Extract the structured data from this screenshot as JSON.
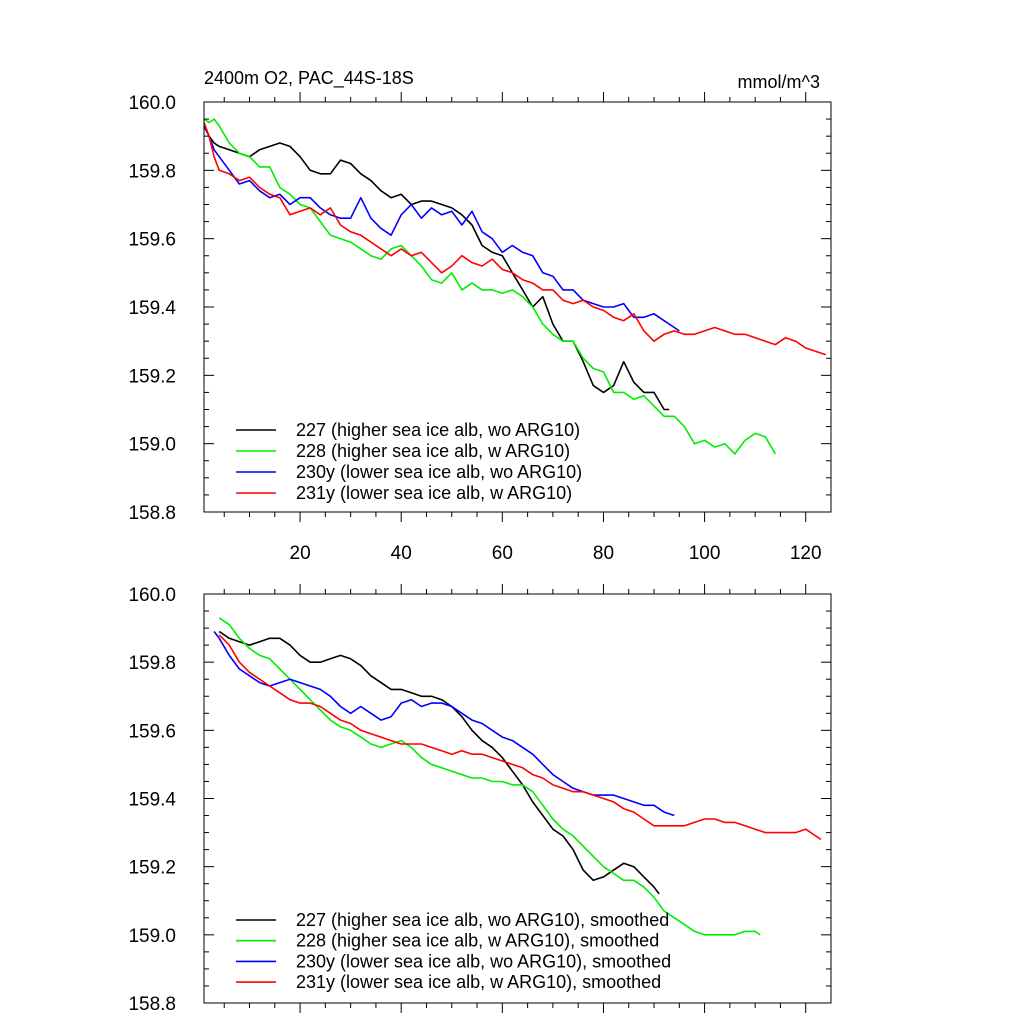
{
  "chart_data": [
    {
      "type": "line",
      "title": "2400m O2, PAC_44S-18S",
      "units": "mmol/m^3",
      "xlabel": "",
      "ylabel": "",
      "xlim": [
        1,
        125
      ],
      "ylim": [
        158.8,
        160.0
      ],
      "xticks": [
        20,
        40,
        60,
        80,
        100,
        120
      ],
      "xtick_labels": [
        "20",
        "40",
        "60",
        "80",
        "100",
        "120"
      ],
      "yticks": [
        158.8,
        159.0,
        159.2,
        159.4,
        159.6,
        159.8,
        160.0
      ],
      "ytick_labels": [
        "158.8",
        "159.0",
        "159.2",
        "159.4",
        "159.6",
        "159.8",
        "160.0"
      ],
      "legend_position": "bottom-left",
      "series": [
        {
          "name": "227 (higher sea ice alb, wo ARG10)",
          "color": "#000000",
          "x": [
            1,
            2,
            3,
            4,
            6,
            8,
            10,
            12,
            14,
            16,
            18,
            20,
            22,
            24,
            26,
            28,
            30,
            32,
            34,
            36,
            38,
            40,
            42,
            44,
            46,
            48,
            50,
            52,
            54,
            56,
            58,
            60,
            62,
            64,
            66,
            68,
            70,
            72,
            74,
            76,
            78,
            80,
            82,
            84,
            86,
            88,
            90,
            92,
            93
          ],
          "y": [
            159.93,
            159.9,
            159.88,
            159.87,
            159.86,
            159.85,
            159.84,
            159.86,
            159.87,
            159.88,
            159.87,
            159.84,
            159.8,
            159.79,
            159.79,
            159.83,
            159.82,
            159.79,
            159.77,
            159.74,
            159.72,
            159.73,
            159.7,
            159.71,
            159.71,
            159.7,
            159.69,
            159.67,
            159.64,
            159.58,
            159.56,
            159.55,
            159.5,
            159.45,
            159.4,
            159.43,
            159.35,
            159.3,
            159.3,
            159.24,
            159.17,
            159.15,
            159.17,
            159.24,
            159.18,
            159.15,
            159.15,
            159.1,
            159.1
          ]
        },
        {
          "name": "228 (higher sea ice alb, w ARG10)",
          "color": "#00ee00",
          "x": [
            1,
            2,
            3,
            4,
            6,
            8,
            10,
            12,
            14,
            16,
            18,
            20,
            22,
            24,
            26,
            28,
            30,
            32,
            34,
            36,
            38,
            40,
            42,
            44,
            46,
            48,
            50,
            52,
            54,
            56,
            58,
            60,
            62,
            64,
            66,
            68,
            70,
            72,
            74,
            76,
            78,
            80,
            82,
            84,
            86,
            88,
            90,
            92,
            94,
            96,
            98,
            100,
            102,
            104,
            106,
            108,
            110,
            112,
            114
          ],
          "y": [
            159.95,
            159.94,
            159.95,
            159.93,
            159.88,
            159.85,
            159.84,
            159.81,
            159.81,
            159.75,
            159.73,
            159.7,
            159.69,
            159.65,
            159.61,
            159.6,
            159.59,
            159.57,
            159.55,
            159.54,
            159.57,
            159.58,
            159.55,
            159.52,
            159.48,
            159.47,
            159.5,
            159.45,
            159.47,
            159.45,
            159.45,
            159.44,
            159.45,
            159.43,
            159.4,
            159.35,
            159.32,
            159.3,
            159.3,
            159.25,
            159.22,
            159.21,
            159.15,
            159.15,
            159.13,
            159.14,
            159.11,
            159.08,
            159.08,
            159.05,
            159.0,
            159.01,
            158.99,
            159.0,
            158.97,
            159.01,
            159.03,
            159.02,
            158.97
          ]
        },
        {
          "name": "230y (lower sea ice alb, wo ARG10)",
          "color": "#0000ff",
          "x": [
            1,
            2,
            3,
            4,
            6,
            8,
            10,
            12,
            14,
            16,
            18,
            20,
            22,
            24,
            26,
            28,
            30,
            32,
            34,
            36,
            38,
            40,
            42,
            44,
            46,
            48,
            50,
            52,
            54,
            56,
            58,
            60,
            62,
            64,
            66,
            68,
            70,
            72,
            74,
            76,
            78,
            80,
            82,
            84,
            86,
            88,
            90,
            92,
            94,
            95
          ],
          "y": [
            159.93,
            159.9,
            159.86,
            159.84,
            159.8,
            159.76,
            159.77,
            159.74,
            159.72,
            159.73,
            159.7,
            159.72,
            159.72,
            159.69,
            159.67,
            159.66,
            159.66,
            159.72,
            159.66,
            159.63,
            159.61,
            159.67,
            159.7,
            159.66,
            159.69,
            159.67,
            159.68,
            159.64,
            159.68,
            159.62,
            159.6,
            159.56,
            159.58,
            159.56,
            159.55,
            159.5,
            159.49,
            159.45,
            159.45,
            159.42,
            159.41,
            159.4,
            159.4,
            159.41,
            159.37,
            159.37,
            159.38,
            159.36,
            159.34,
            159.33
          ]
        },
        {
          "name": "231y (lower sea ice alb, w ARG10)",
          "color": "#ff0000",
          "x": [
            1,
            2,
            3,
            4,
            6,
            8,
            10,
            12,
            14,
            16,
            18,
            20,
            22,
            24,
            26,
            28,
            30,
            32,
            34,
            36,
            38,
            40,
            42,
            44,
            46,
            48,
            50,
            52,
            54,
            56,
            58,
            60,
            62,
            64,
            66,
            68,
            70,
            72,
            74,
            76,
            78,
            80,
            82,
            84,
            86,
            88,
            90,
            92,
            94,
            96,
            98,
            100,
            102,
            104,
            106,
            108,
            110,
            112,
            114,
            116,
            118,
            120,
            122,
            124
          ],
          "y": [
            159.94,
            159.9,
            159.84,
            159.8,
            159.79,
            159.77,
            159.78,
            159.75,
            159.73,
            159.72,
            159.67,
            159.68,
            159.69,
            159.67,
            159.69,
            159.64,
            159.62,
            159.61,
            159.59,
            159.57,
            159.55,
            159.57,
            159.55,
            159.56,
            159.53,
            159.5,
            159.52,
            159.55,
            159.53,
            159.52,
            159.54,
            159.51,
            159.5,
            159.48,
            159.47,
            159.45,
            159.45,
            159.42,
            159.41,
            159.42,
            159.4,
            159.39,
            159.37,
            159.36,
            159.38,
            159.33,
            159.3,
            159.32,
            159.33,
            159.32,
            159.32,
            159.33,
            159.34,
            159.33,
            159.32,
            159.32,
            159.31,
            159.3,
            159.29,
            159.31,
            159.3,
            159.28,
            159.27,
            159.26
          ]
        }
      ]
    },
    {
      "type": "line",
      "title": "",
      "xlabel": "",
      "ylabel": "",
      "xlim": [
        1,
        125
      ],
      "ylim": [
        158.8,
        160.0
      ],
      "xticks": [
        20,
        40,
        60,
        80,
        100,
        120
      ],
      "yticks": [
        158.8,
        159.0,
        159.2,
        159.4,
        159.6,
        159.8,
        160.0
      ],
      "ytick_labels": [
        "158.8",
        "159.0",
        "159.2",
        "159.4",
        "159.6",
        "159.8",
        "160.0"
      ],
      "legend_position": "bottom-left",
      "series": [
        {
          "name": "227 (higher sea ice alb, wo ARG10), smoothed",
          "color": "#000000",
          "x": [
            4,
            6,
            8,
            10,
            12,
            14,
            16,
            18,
            20,
            22,
            24,
            26,
            28,
            30,
            32,
            34,
            36,
            38,
            40,
            42,
            44,
            46,
            48,
            50,
            52,
            54,
            56,
            58,
            60,
            62,
            64,
            66,
            68,
            70,
            72,
            74,
            76,
            78,
            80,
            82,
            84,
            86,
            88,
            90,
            91
          ],
          "y": [
            159.89,
            159.87,
            159.86,
            159.85,
            159.86,
            159.87,
            159.87,
            159.85,
            159.82,
            159.8,
            159.8,
            159.81,
            159.82,
            159.81,
            159.79,
            159.76,
            159.74,
            159.72,
            159.72,
            159.71,
            159.7,
            159.7,
            159.69,
            159.67,
            159.64,
            159.6,
            159.57,
            159.55,
            159.52,
            159.48,
            159.44,
            159.39,
            159.35,
            159.31,
            159.29,
            159.25,
            159.19,
            159.16,
            159.17,
            159.19,
            159.21,
            159.2,
            159.17,
            159.14,
            159.12
          ]
        },
        {
          "name": "228 (higher sea ice alb, w ARG10), smoothed",
          "color": "#00ee00",
          "x": [
            4,
            6,
            8,
            10,
            12,
            14,
            16,
            18,
            20,
            22,
            24,
            26,
            28,
            30,
            32,
            34,
            36,
            38,
            40,
            42,
            44,
            46,
            48,
            50,
            52,
            54,
            56,
            58,
            60,
            62,
            64,
            66,
            68,
            70,
            72,
            74,
            76,
            78,
            80,
            82,
            84,
            86,
            88,
            90,
            92,
            94,
            96,
            98,
            100,
            102,
            104,
            106,
            108,
            110,
            111
          ],
          "y": [
            159.93,
            159.91,
            159.87,
            159.84,
            159.82,
            159.81,
            159.78,
            159.75,
            159.72,
            159.69,
            159.66,
            159.63,
            159.61,
            159.6,
            159.58,
            159.56,
            159.55,
            159.56,
            159.57,
            159.55,
            159.52,
            159.5,
            159.49,
            159.48,
            159.47,
            159.46,
            159.46,
            159.45,
            159.45,
            159.44,
            159.44,
            159.42,
            159.38,
            159.34,
            159.31,
            159.29,
            159.26,
            159.23,
            159.2,
            159.18,
            159.16,
            159.16,
            159.14,
            159.11,
            159.07,
            159.05,
            159.03,
            159.01,
            159.0,
            159.0,
            159.0,
            159.0,
            159.01,
            159.01,
            159.0
          ]
        },
        {
          "name": "230y (lower sea ice alb, wo ARG10), smoothed",
          "color": "#0000ff",
          "x": [
            3,
            4,
            6,
            8,
            10,
            12,
            14,
            16,
            18,
            20,
            22,
            24,
            26,
            28,
            30,
            32,
            34,
            36,
            38,
            40,
            42,
            44,
            46,
            48,
            50,
            52,
            54,
            56,
            58,
            60,
            62,
            64,
            66,
            68,
            70,
            72,
            74,
            76,
            78,
            80,
            82,
            84,
            86,
            88,
            90,
            92,
            94
          ],
          "y": [
            159.89,
            159.87,
            159.82,
            159.78,
            159.76,
            159.74,
            159.73,
            159.74,
            159.75,
            159.74,
            159.73,
            159.72,
            159.7,
            159.67,
            159.65,
            159.67,
            159.65,
            159.63,
            159.64,
            159.68,
            159.69,
            159.67,
            159.68,
            159.68,
            159.67,
            159.65,
            159.63,
            159.62,
            159.6,
            159.58,
            159.57,
            159.55,
            159.53,
            159.5,
            159.47,
            159.45,
            159.43,
            159.42,
            159.41,
            159.41,
            159.41,
            159.4,
            159.39,
            159.38,
            159.38,
            159.36,
            159.35
          ]
        },
        {
          "name": "231y (lower sea ice alb, w ARG10), smoothed",
          "color": "#ff0000",
          "x": [
            4,
            6,
            8,
            10,
            12,
            14,
            16,
            18,
            20,
            22,
            24,
            26,
            28,
            30,
            32,
            34,
            36,
            38,
            40,
            42,
            44,
            46,
            48,
            50,
            52,
            54,
            56,
            58,
            60,
            62,
            64,
            66,
            68,
            70,
            72,
            74,
            76,
            78,
            80,
            82,
            84,
            86,
            88,
            90,
            92,
            94,
            96,
            98,
            100,
            102,
            104,
            106,
            108,
            110,
            112,
            114,
            116,
            118,
            120,
            122,
            123
          ],
          "y": [
            159.88,
            159.85,
            159.8,
            159.77,
            159.75,
            159.73,
            159.71,
            159.69,
            159.68,
            159.68,
            159.67,
            159.65,
            159.63,
            159.62,
            159.6,
            159.59,
            159.58,
            159.57,
            159.56,
            159.56,
            159.56,
            159.55,
            159.54,
            159.53,
            159.54,
            159.53,
            159.53,
            159.52,
            159.51,
            159.5,
            159.49,
            159.47,
            159.46,
            159.44,
            159.43,
            159.42,
            159.42,
            159.41,
            159.4,
            159.39,
            159.37,
            159.36,
            159.34,
            159.32,
            159.32,
            159.32,
            159.32,
            159.33,
            159.34,
            159.34,
            159.33,
            159.33,
            159.32,
            159.31,
            159.3,
            159.3,
            159.3,
            159.3,
            159.31,
            159.29,
            159.28
          ]
        }
      ]
    }
  ]
}
